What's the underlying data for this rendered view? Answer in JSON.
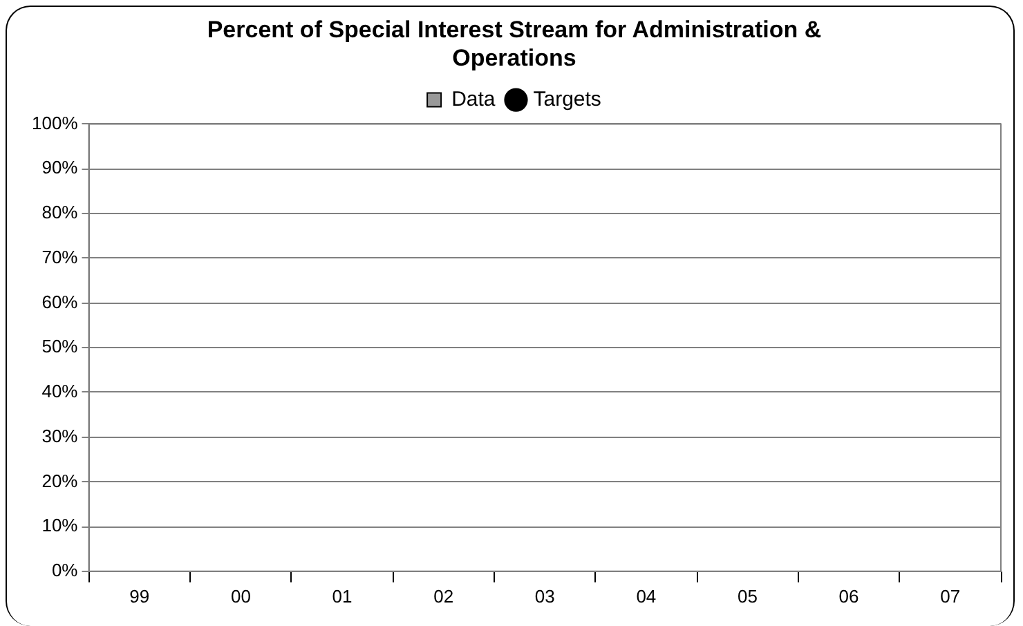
{
  "chart_data": {
    "type": "bar",
    "title": "Percent of Special Interest Stream for Administration & Operations",
    "categories": [
      "99",
      "00",
      "01",
      "02",
      "03",
      "04",
      "05",
      "06",
      "07"
    ],
    "series": [
      {
        "name": "Data",
        "type": "bar",
        "color": "#999999",
        "values": [
          null,
          null,
          null,
          null,
          null,
          null,
          null,
          null,
          null
        ]
      },
      {
        "name": "Targets",
        "type": "line",
        "color": "#000000",
        "marker": "circle",
        "values": [
          null,
          null,
          null,
          null,
          null,
          null,
          null,
          null,
          null
        ]
      }
    ],
    "ylim": [
      0,
      100
    ],
    "yticks": [
      {
        "value": 0,
        "label": "0%"
      },
      {
        "value": 10,
        "label": "10%"
      },
      {
        "value": 20,
        "label": "20%"
      },
      {
        "value": 30,
        "label": "30%"
      },
      {
        "value": 40,
        "label": "40%"
      },
      {
        "value": 50,
        "label": "50%"
      },
      {
        "value": 60,
        "label": "60%"
      },
      {
        "value": 70,
        "label": "70%"
      },
      {
        "value": 80,
        "label": "80%"
      },
      {
        "value": 90,
        "label": "90%"
      },
      {
        "value": 100,
        "label": "100%"
      }
    ],
    "grid": "y",
    "legend": "top"
  }
}
